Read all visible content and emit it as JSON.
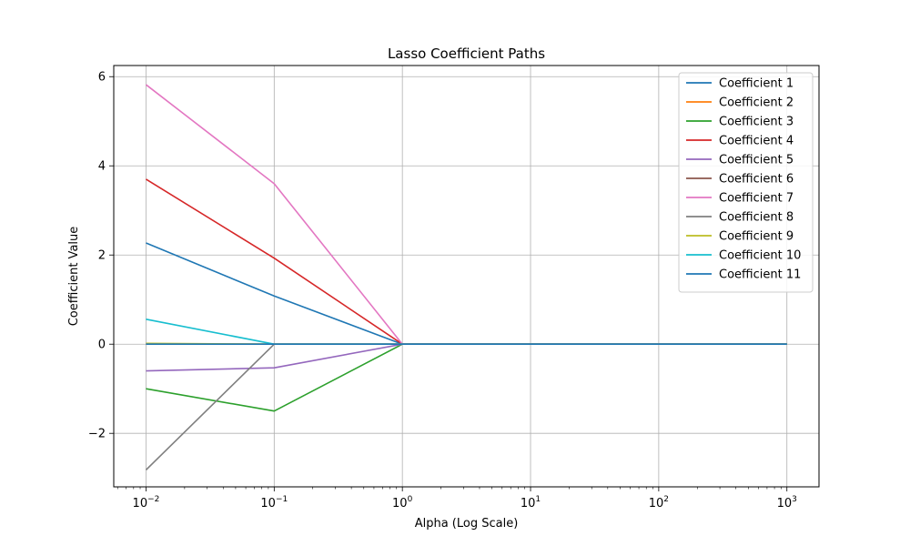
{
  "chart_data": {
    "type": "line",
    "title": "Lasso Coefficient Paths",
    "xlabel": "Alpha (Log Scale)",
    "ylabel": "Coefficient Value",
    "xscale": "log",
    "x": [
      0.01,
      0.1,
      1,
      10,
      100,
      1000
    ],
    "xlim": [
      0.0056,
      1780
    ],
    "ylim": [
      -3.2,
      6.25
    ],
    "x_ticks": [
      {
        "value": 0.01,
        "base": "10",
        "exp": "−2"
      },
      {
        "value": 0.1,
        "base": "10",
        "exp": "−1"
      },
      {
        "value": 1,
        "base": "10",
        "exp": "0"
      },
      {
        "value": 10,
        "base": "10",
        "exp": "1"
      },
      {
        "value": 100,
        "base": "10",
        "exp": "2"
      },
      {
        "value": 1000,
        "base": "10",
        "exp": "3"
      }
    ],
    "y_ticks": [
      {
        "value": -2,
        "label": "−2"
      },
      {
        "value": 0,
        "label": "0"
      },
      {
        "value": 2,
        "label": "2"
      },
      {
        "value": 4,
        "label": "4"
      },
      {
        "value": 6,
        "label": "6"
      }
    ],
    "grid": true,
    "legend_position": "top-right",
    "series": [
      {
        "name": "Coefficient 1",
        "color": "#1f77b4",
        "values": [
          2.27,
          1.08,
          0,
          0,
          0,
          0
        ]
      },
      {
        "name": "Coefficient 2",
        "color": "#ff7f0e",
        "values": [
          0.0,
          0.0,
          0,
          0,
          0,
          0
        ]
      },
      {
        "name": "Coefficient 3",
        "color": "#2ca02c",
        "values": [
          -1.0,
          -1.5,
          0,
          0,
          0,
          0
        ]
      },
      {
        "name": "Coefficient 4",
        "color": "#d62728",
        "values": [
          3.7,
          1.93,
          0,
          0,
          0,
          0
        ]
      },
      {
        "name": "Coefficient 5",
        "color": "#9467bd",
        "values": [
          -0.6,
          -0.53,
          0,
          0,
          0,
          0
        ]
      },
      {
        "name": "Coefficient 6",
        "color": "#8c564b",
        "values": [
          0.0,
          0.0,
          0,
          0,
          0,
          0
        ]
      },
      {
        "name": "Coefficient 7",
        "color": "#e377c2",
        "values": [
          5.82,
          3.6,
          0,
          0,
          0,
          0
        ]
      },
      {
        "name": "Coefficient 8",
        "color": "#7f7f7f",
        "values": [
          -2.82,
          0.0,
          0,
          0,
          0,
          0
        ]
      },
      {
        "name": "Coefficient 9",
        "color": "#bcbd22",
        "values": [
          0.02,
          0.0,
          0,
          0,
          0,
          0
        ]
      },
      {
        "name": "Coefficient 10",
        "color": "#17becf",
        "values": [
          0.56,
          0.0,
          0,
          0,
          0,
          0
        ]
      },
      {
        "name": "Coefficient 11",
        "color": "#1f77b4",
        "values": [
          0.0,
          0.0,
          0,
          0,
          0,
          0
        ]
      }
    ]
  }
}
